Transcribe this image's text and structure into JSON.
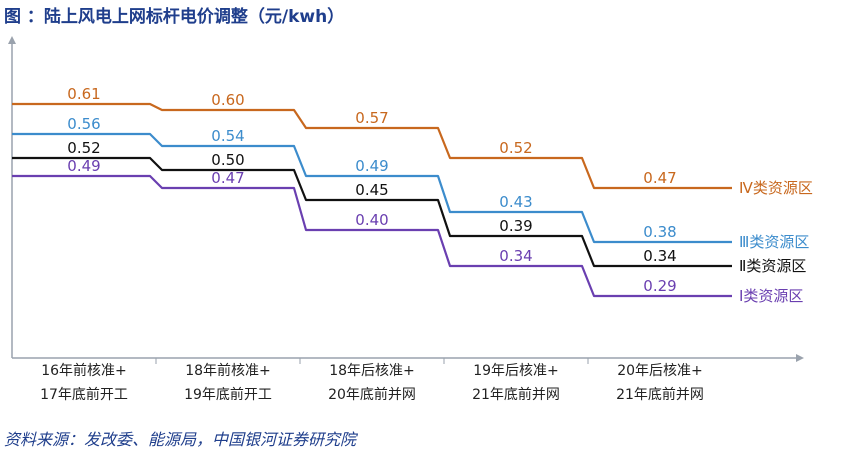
{
  "title": "图  ：陆上风电上网标杆电价调整（元/kwh）",
  "source": "资料来源：发改委、能源局，中国银河证券研究院",
  "chart_data": {
    "type": "line",
    "step": true,
    "categories": [
      [
        "16年前核准+",
        "17年底前开工"
      ],
      [
        "18年前核准+",
        "19年底前开工"
      ],
      [
        "18年后核准+",
        "20年底前并网"
      ],
      [
        "19年后核准+",
        "21年底前并网"
      ],
      [
        "20年后核准+",
        "21年底前并网"
      ]
    ],
    "ylim": [
      0.2,
      0.7
    ],
    "grid": false,
    "legend": "right",
    "series": [
      {
        "name": "Ⅳ类资源区",
        "color": "#c8681e",
        "values": [
          0.61,
          0.6,
          0.57,
          0.52,
          0.47
        ],
        "labels": [
          "0.61",
          "0.60",
          "0.57",
          "0.52",
          "0.47"
        ]
      },
      {
        "name": "Ⅲ类资源区",
        "color": "#3c8ccc",
        "values": [
          0.56,
          0.54,
          0.49,
          0.43,
          0.38
        ],
        "labels": [
          "0.56",
          "0.54",
          "0.49",
          "0.43",
          "0.38"
        ]
      },
      {
        "name": "Ⅱ类资源区",
        "color": "#111111",
        "values": [
          0.52,
          0.5,
          0.45,
          0.39,
          0.34
        ],
        "labels": [
          "0.52",
          "0.50",
          "0.45",
          "0.39",
          "0.34"
        ]
      },
      {
        "name": "Ⅰ类资源区",
        "color": "#6a3fb0",
        "values": [
          0.49,
          0.47,
          0.4,
          0.34,
          0.29
        ],
        "labels": [
          "0.49",
          "0.47",
          "0.40",
          "0.34",
          "0.29"
        ]
      }
    ]
  }
}
